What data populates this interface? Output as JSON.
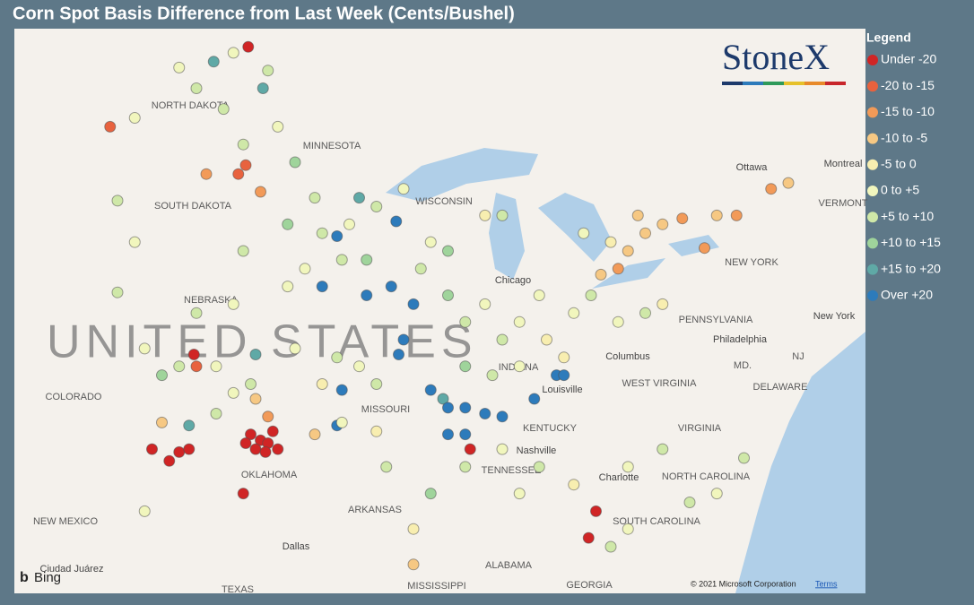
{
  "title": "Corn Spot Basis Difference from Last Week (Cents/Bushel)",
  "legend": {
    "title": "Legend",
    "items": [
      {
        "label": "Under -20",
        "color": "#d02525"
      },
      {
        "label": "-20 to -15",
        "color": "#e8623e"
      },
      {
        "label": "-15 to -10",
        "color": "#f29a58"
      },
      {
        "label": "-10 to -5",
        "color": "#f6c883"
      },
      {
        "label": "-5 to 0",
        "color": "#f8eeb0"
      },
      {
        "label": "0 to +5",
        "color": "#f1f6bd"
      },
      {
        "label": "+5 to +10",
        "color": "#cfe8a8"
      },
      {
        "label": "+10 to +15",
        "color": "#9fd49b"
      },
      {
        "label": "+15 to +20",
        "color": "#5fa9a6"
      },
      {
        "label": "Over +20",
        "color": "#2d7bbb"
      }
    ]
  },
  "map_labels": [
    "NORTH DAKOTA",
    "MINNESOTA",
    "SOUTH DAKOTA",
    "WISCONSIN",
    "NEBRASKA",
    "COLORADO",
    "MISSOURI",
    "INDIANA",
    "KENTUCKY",
    "TENNESSEE",
    "ARKANSAS",
    "OKLAHOMA",
    "NEW MEXICO",
    "ALABAMA",
    "GEORGIA",
    "MISSISSIPPI",
    "TEXAS",
    "WEST VIRGINIA",
    "VIRGINIA",
    "NORTH CAROLINA",
    "SOUTH CAROLINA",
    "PENNSYLVANIA",
    "NEW YORK",
    "MD.",
    "NJ",
    "DELAWARE",
    "VERMONT",
    "Ottawa",
    "Montreal",
    "Chicago",
    "Columbus",
    "Louisville",
    "Nashville",
    "Charlotte",
    "Dallas",
    "Ciudad Juárez",
    "Philadelphia",
    "New York"
  ],
  "country_label": "UNITED STATES",
  "logo": "StoneX",
  "provider": "Bing",
  "copyright": "© 2021 Microsoft Corporation",
  "terms": "Terms",
  "points": [
    [
      -97.8,
      36.4,
      0
    ],
    [
      -98.2,
      36.6,
      0
    ],
    [
      -97.5,
      36.3,
      0
    ],
    [
      -98.0,
      36.1,
      0
    ],
    [
      -97.3,
      36.7,
      0
    ],
    [
      -97.6,
      36.0,
      0
    ],
    [
      -98.4,
      36.3,
      0
    ],
    [
      -97.1,
      36.1,
      0
    ],
    [
      -101.1,
      36.0,
      0
    ],
    [
      -101.5,
      35.7,
      0
    ],
    [
      -100.7,
      36.1,
      0
    ],
    [
      -102.2,
      36.1,
      0
    ],
    [
      -100.5,
      39.3,
      0
    ],
    [
      -100.4,
      38.9,
      1
    ],
    [
      -98.3,
      49.7,
      0
    ],
    [
      -103.9,
      47.0,
      1
    ],
    [
      -84.2,
      34.0,
      0
    ],
    [
      -84.5,
      33.1,
      0
    ],
    [
      -89.3,
      36.1,
      0
    ],
    [
      -98.5,
      34.6,
      0
    ],
    [
      -100.0,
      45.4,
      2
    ],
    [
      -98.7,
      45.4,
      1
    ],
    [
      -97.8,
      44.8,
      2
    ],
    [
      -98.4,
      45.7,
      1
    ],
    [
      -98.0,
      37.8,
      3
    ],
    [
      -97.5,
      37.2,
      2
    ],
    [
      -95.6,
      36.6,
      3
    ],
    [
      -101.8,
      37.0,
      3
    ],
    [
      -82.9,
      42.8,
      3
    ],
    [
      -82.2,
      43.4,
      3
    ],
    [
      -81.5,
      43.7,
      3
    ],
    [
      -83.3,
      42.2,
      2
    ],
    [
      -80.7,
      43.9,
      2
    ],
    [
      -79.3,
      44.0,
      3
    ],
    [
      -78.5,
      44.0,
      2
    ],
    [
      -77.1,
      44.9,
      2
    ],
    [
      -76.4,
      45.1,
      3
    ],
    [
      -79.8,
      42.9,
      2
    ],
    [
      -82.5,
      44.0,
      3
    ],
    [
      -84.0,
      42.0,
      3
    ],
    [
      -92.3,
      43.8,
      9
    ],
    [
      -93.8,
      44.6,
      8
    ],
    [
      -94.7,
      43.3,
      9
    ],
    [
      -95.3,
      41.6,
      9
    ],
    [
      -91.6,
      41.0,
      9
    ],
    [
      -92.0,
      39.8,
      9
    ],
    [
      -92.2,
      39.3,
      9
    ],
    [
      -90.9,
      38.1,
      9
    ],
    [
      -90.4,
      37.8,
      8
    ],
    [
      -90.2,
      37.5,
      9
    ],
    [
      -89.5,
      37.5,
      9
    ],
    [
      -88.7,
      37.3,
      9
    ],
    [
      -88.0,
      37.2,
      9
    ],
    [
      -85.8,
      38.6,
      9
    ],
    [
      -85.5,
      38.6,
      9
    ],
    [
      -86.7,
      37.8,
      9
    ],
    [
      -90.2,
      36.6,
      9
    ],
    [
      -89.5,
      36.6,
      9
    ],
    [
      -94.5,
      38.1,
      9
    ],
    [
      -94.7,
      36.9,
      9
    ],
    [
      -98.0,
      39.3,
      8
    ],
    [
      -100.7,
      36.9,
      8
    ],
    [
      -97.7,
      48.3,
      8
    ],
    [
      -99.7,
      49.2,
      8
    ],
    [
      -93.5,
      41.3,
      9
    ],
    [
      -92.5,
      41.6,
      9
    ],
    [
      -101.1,
      49.0,
      5
    ],
    [
      -99.3,
      47.6,
      6
    ],
    [
      -97.5,
      48.9,
      6
    ],
    [
      -97.1,
      47.0,
      5
    ],
    [
      -98.5,
      46.4,
      6
    ],
    [
      -96.4,
      45.8,
      7
    ],
    [
      -95.6,
      44.6,
      6
    ],
    [
      -96.7,
      43.7,
      7
    ],
    [
      -95.3,
      43.4,
      6
    ],
    [
      -94.2,
      43.7,
      5
    ],
    [
      -93.1,
      44.3,
      6
    ],
    [
      -92.0,
      44.9,
      5
    ],
    [
      -96.0,
      42.2,
      5
    ],
    [
      -94.5,
      42.5,
      6
    ],
    [
      -93.5,
      42.5,
      7
    ],
    [
      -96.7,
      41.6,
      5
    ],
    [
      -98.5,
      42.8,
      6
    ],
    [
      -98.9,
      41.0,
      5
    ],
    [
      -100.4,
      40.7,
      6
    ],
    [
      -101.8,
      38.6,
      7
    ],
    [
      -102.5,
      39.5,
      5
    ],
    [
      -101.1,
      38.9,
      6
    ],
    [
      -99.6,
      38.9,
      5
    ],
    [
      -98.2,
      38.3,
      6
    ],
    [
      -96.4,
      39.5,
      5
    ],
    [
      -94.7,
      39.2,
      6
    ],
    [
      -95.3,
      38.3,
      4
    ],
    [
      -93.8,
      38.9,
      5
    ],
    [
      -93.1,
      38.3,
      6
    ],
    [
      -94.5,
      37.0,
      5
    ],
    [
      -93.1,
      36.7,
      4
    ],
    [
      -91.3,
      42.2,
      6
    ],
    [
      -90.2,
      41.3,
      7
    ],
    [
      -89.5,
      40.4,
      6
    ],
    [
      -88.7,
      41.0,
      5
    ],
    [
      -88.0,
      39.8,
      6
    ],
    [
      -87.3,
      40.4,
      5
    ],
    [
      -86.2,
      39.8,
      4
    ],
    [
      -85.1,
      40.7,
      5
    ],
    [
      -84.4,
      41.3,
      6
    ],
    [
      -86.5,
      41.3,
      5
    ],
    [
      -89.5,
      38.9,
      7
    ],
    [
      -88.4,
      38.6,
      6
    ],
    [
      -87.3,
      38.9,
      5
    ],
    [
      -85.5,
      39.2,
      4
    ],
    [
      -83.3,
      40.4,
      5
    ],
    [
      -82.2,
      40.7,
      6
    ],
    [
      -81.5,
      41.0,
      4
    ],
    [
      -83.6,
      43.1,
      4
    ],
    [
      -84.7,
      43.4,
      5
    ],
    [
      -88.0,
      44.0,
      6
    ],
    [
      -88.7,
      44.0,
      4
    ],
    [
      -90.2,
      42.8,
      7
    ],
    [
      -90.9,
      43.1,
      5
    ],
    [
      -103.6,
      44.5,
      6
    ],
    [
      -102.9,
      43.1,
      5
    ],
    [
      -103.6,
      41.4,
      6
    ],
    [
      -99.6,
      37.3,
      6
    ],
    [
      -98.9,
      38.0,
      5
    ],
    [
      -88.0,
      36.1,
      5
    ],
    [
      -86.5,
      35.5,
      6
    ],
    [
      -85.1,
      34.9,
      4
    ],
    [
      -82.9,
      35.5,
      5
    ],
    [
      -81.5,
      36.1,
      6
    ],
    [
      -80.4,
      34.3,
      6
    ],
    [
      -79.3,
      34.6,
      5
    ],
    [
      -78.2,
      35.8,
      6
    ],
    [
      -82.9,
      33.4,
      5
    ],
    [
      -83.6,
      32.8,
      6
    ],
    [
      -87.3,
      34.6,
      5
    ],
    [
      -90.9,
      34.6,
      7
    ],
    [
      -91.6,
      33.4,
      4
    ],
    [
      -91.6,
      32.2,
      3
    ],
    [
      -102.5,
      34.0,
      5
    ],
    [
      -92.7,
      35.5,
      6
    ],
    [
      -89.5,
      35.5,
      6
    ],
    [
      -102.9,
      47.3,
      5
    ],
    [
      -98.9,
      49.5,
      5
    ],
    [
      -100.4,
      48.3,
      6
    ]
  ]
}
